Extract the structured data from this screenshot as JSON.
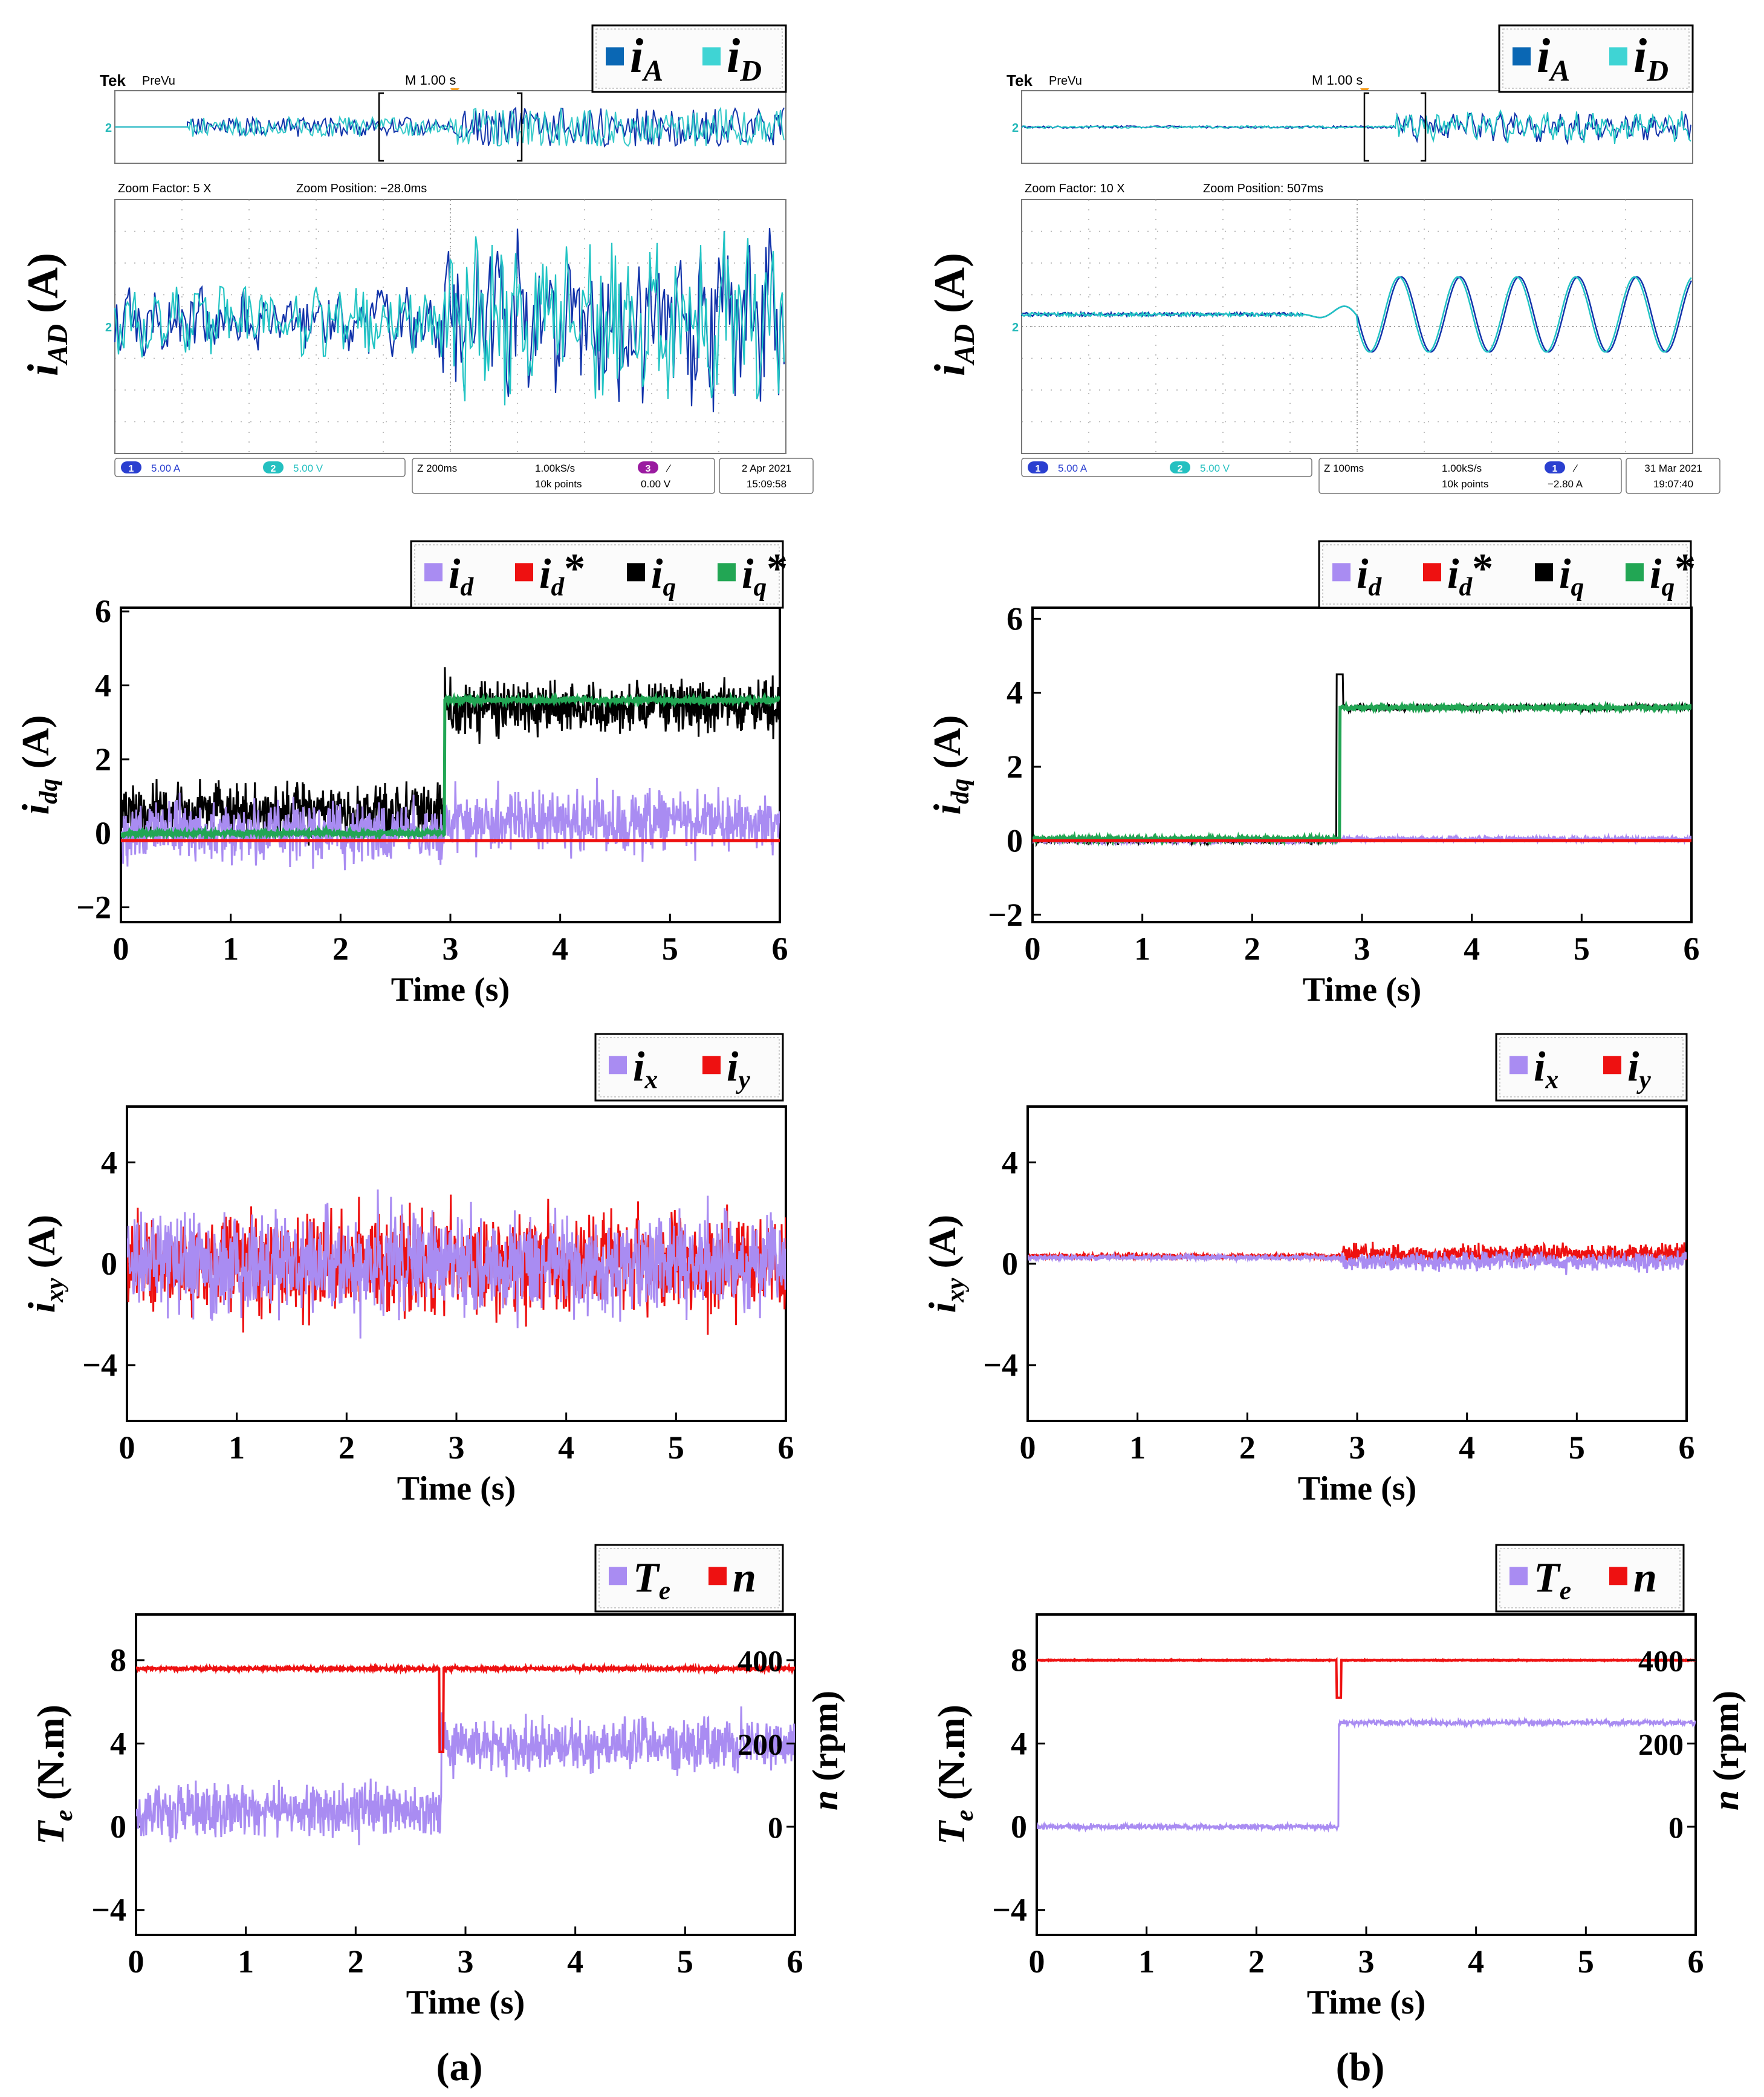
{
  "columns": [
    {
      "label": "(a)"
    },
    {
      "label": "(b)"
    }
  ],
  "colors": {
    "iA": "#0a67b4",
    "iD": "#3fd4d4",
    "ch1": "#1133aa",
    "ch2": "#22c4c4",
    "purple": "#a98cf2",
    "red": "#ee1111",
    "black": "#000000",
    "green": "#22a654"
  },
  "chart_data": [
    {
      "id": "scope-a",
      "type": "line",
      "ylabel_main": "i",
      "ylabel_sub": "AD",
      "ylabel_unit": " (A)",
      "legend": [
        {
          "main": "i",
          "sub": "A",
          "color_key": "iA"
        },
        {
          "main": "i",
          "sub": "D",
          "color_key": "iD"
        }
      ],
      "scope": {
        "brand": "Tek",
        "mode": "PreVu",
        "timebase": "M 1.00 s",
        "zoom_factor": "Zoom Factor: 5 X",
        "zoom_position": "Zoom Position: −28.0ms",
        "ch1_scale": "5.00 A",
        "ch2_scale": "5.00 V",
        "zoom_scale": "Z 200ms",
        "sample_rate": "1.00kS/s",
        "record": "10k points",
        "trig_ch": "3",
        "trig_symbol": "⁄",
        "trig_level": "0.00 V",
        "date": "2 Apr 2021",
        "time": "15:09:58",
        "marker": "2"
      },
      "series": [
        {
          "name": "iA",
          "pre_amplitude": 1.0,
          "post_amplitude": 2.0
        },
        {
          "name": "iD",
          "pre_amplitude": 0.9,
          "post_amplitude": 1.8
        }
      ]
    },
    {
      "id": "scope-b",
      "type": "line",
      "ylabel_main": "i",
      "ylabel_sub": "AD",
      "ylabel_unit": " (A)",
      "legend": [
        {
          "main": "i",
          "sub": "A",
          "color_key": "iA"
        },
        {
          "main": "i",
          "sub": "D",
          "color_key": "iD"
        }
      ],
      "scope": {
        "brand": "Tek",
        "mode": "PreVu",
        "timebase": "M 1.00 s",
        "zoom_factor": "Zoom Factor: 10 X",
        "zoom_position": "Zoom Position: 507ms",
        "ch1_scale": "5.00 A",
        "ch2_scale": "5.00 V",
        "zoom_scale": "Z 100ms",
        "sample_rate": "1.00kS/s",
        "record": "10k points",
        "trig_ch": "1",
        "trig_symbol": "⁄",
        "trig_level": "−2.80 A",
        "date": "31 Mar 2021",
        "time": "19:07:40",
        "marker": "2"
      },
      "series": [
        {
          "name": "iA",
          "pre_amplitude": 0.1,
          "post_amplitude": 2.2
        },
        {
          "name": "iD",
          "pre_amplitude": 0.1,
          "post_amplitude": 2.2
        }
      ]
    },
    {
      "id": "idq-a",
      "type": "line",
      "ylabel_main": "i",
      "ylabel_sub": "dq",
      "ylabel_unit": " (A)",
      "xlabel": "Time (s)",
      "xlim": [
        0,
        6
      ],
      "ylim": [
        -2.4,
        6.1
      ],
      "xticks": [
        "0",
        "1",
        "2",
        "3",
        "4",
        "5",
        "6"
      ],
      "yticks": [
        "−2",
        "0",
        "2",
        "4",
        "6"
      ],
      "ytick_values": [
        -2,
        0,
        2,
        4,
        6
      ],
      "legend": [
        {
          "main": "i",
          "sub": "d",
          "star": false,
          "color_key": "purple"
        },
        {
          "main": "i",
          "sub": "d",
          "star": true,
          "color_key": "red"
        },
        {
          "main": "i",
          "sub": "q",
          "star": false,
          "color_key": "black"
        },
        {
          "main": "i",
          "sub": "q",
          "star": true,
          "color_key": "green"
        }
      ],
      "step_time": 2.95,
      "series": [
        {
          "name": "id",
          "pre_mean": 0.0,
          "post_mean": 0.3,
          "noise": 0.75
        },
        {
          "name": "id*",
          "pre_mean": -0.2,
          "post_mean": -0.2,
          "noise": 0.0
        },
        {
          "name": "iq",
          "pre_mean": 0.6,
          "post_mean": 3.4,
          "noise": 0.7
        },
        {
          "name": "iq*",
          "pre_mean": 0.0,
          "post_mean": 3.6,
          "noise": 0.08
        }
      ]
    },
    {
      "id": "idq-b",
      "type": "line",
      "ylabel_main": "i",
      "ylabel_sub": "dq",
      "ylabel_unit": " (A)",
      "xlabel": "Time (s)",
      "xlim": [
        0,
        6
      ],
      "ylim": [
        -2.2,
        6.3
      ],
      "xticks": [
        "0",
        "1",
        "2",
        "3",
        "4",
        "5",
        "6"
      ],
      "yticks": [
        "−2",
        "0",
        "2",
        "4",
        "6"
      ],
      "ytick_values": [
        -2,
        0,
        2,
        4,
        6
      ],
      "legend": [
        {
          "main": "i",
          "sub": "d",
          "star": false,
          "color_key": "purple"
        },
        {
          "main": "i",
          "sub": "d",
          "star": true,
          "color_key": "red"
        },
        {
          "main": "i",
          "sub": "q",
          "star": false,
          "color_key": "black"
        },
        {
          "main": "i",
          "sub": "q",
          "star": true,
          "color_key": "green"
        }
      ],
      "step_time": 2.8,
      "series": [
        {
          "name": "id",
          "pre_mean": 0.0,
          "post_mean": 0.05,
          "noise": 0.07
        },
        {
          "name": "id*",
          "pre_mean": 0.0,
          "post_mean": 0.0,
          "noise": 0.0
        },
        {
          "name": "iq",
          "pre_mean": 0.0,
          "post_mean": 3.6,
          "noise": 0.08,
          "spike": 4.5
        },
        {
          "name": "iq*",
          "pre_mean": 0.05,
          "post_mean": 3.6,
          "noise": 0.05
        }
      ]
    },
    {
      "id": "ixy-a",
      "type": "line",
      "ylabel_main": "i",
      "ylabel_sub": "xy",
      "ylabel_unit": " (A)",
      "xlabel": "Time (s)",
      "xlim": [
        0,
        6
      ],
      "ylim": [
        -6.2,
        6.2
      ],
      "xticks": [
        "0",
        "1",
        "2",
        "3",
        "4",
        "5",
        "6"
      ],
      "yticks": [
        "−4",
        "0",
        "4"
      ],
      "ytick_values": [
        -4,
        0,
        4
      ],
      "legend": [
        {
          "main": "i",
          "sub": "x",
          "star": false,
          "color_key": "purple"
        },
        {
          "main": "i",
          "sub": "y",
          "star": false,
          "color_key": "red"
        }
      ],
      "series": [
        {
          "name": "iy",
          "mean": 0.0,
          "noise": 2.4
        },
        {
          "name": "ix",
          "mean": 0.0,
          "noise": 2.4
        }
      ]
    },
    {
      "id": "ixy-b",
      "type": "line",
      "ylabel_main": "i",
      "ylabel_sub": "xy",
      "ylabel_unit": " (A)",
      "xlabel": "Time (s)",
      "xlim": [
        0,
        6
      ],
      "ylim": [
        -6.2,
        6.2
      ],
      "xticks": [
        "0",
        "1",
        "2",
        "3",
        "4",
        "5",
        "6"
      ],
      "yticks": [
        "−4",
        "0",
        "4"
      ],
      "ytick_values": [
        -4,
        0,
        4
      ],
      "legend": [
        {
          "main": "i",
          "sub": "x",
          "star": false,
          "color_key": "purple"
        },
        {
          "main": "i",
          "sub": "y",
          "star": false,
          "color_key": "red"
        }
      ],
      "step_time": 2.85,
      "series": [
        {
          "name": "iy",
          "pre_mean": 0.3,
          "post_mean": 0.4,
          "pre_noise": 0.1,
          "post_noise": 0.35
        },
        {
          "name": "ix",
          "pre_mean": 0.25,
          "post_mean": 0.1,
          "pre_noise": 0.1,
          "post_noise": 0.35
        }
      ]
    },
    {
      "id": "ten-a",
      "type": "line",
      "ylabel_main": "T",
      "ylabel_sub": "e",
      "ylabel_unit": " (N.m)",
      "y2label_main": "n",
      "y2label_unit": " (rpm)",
      "xlabel": "Time (s)",
      "xlim": [
        0,
        6
      ],
      "ylim": [
        -5.2,
        10.2
      ],
      "xticks": [
        "0",
        "1",
        "2",
        "3",
        "4",
        "5",
        "6"
      ],
      "yticks": [
        "−4",
        "0",
        "4",
        "8"
      ],
      "ytick_values": [
        -4,
        0,
        4,
        8
      ],
      "y2ticks": [
        "0",
        "200",
        "400"
      ],
      "y2tick_values": [
        0,
        200,
        400
      ],
      "y2lim": [
        -260,
        510
      ],
      "legend": [
        {
          "main": "T",
          "sub": "e",
          "star": false,
          "color_key": "purple"
        },
        {
          "main": "n",
          "sub": "",
          "star": false,
          "color_key": "red"
        }
      ],
      "step_time": 2.78,
      "series": [
        {
          "name": "Te",
          "pre_mean": 0.8,
          "post_mean": 3.9,
          "noise": 1.2
        },
        {
          "name": "n",
          "mean": 380,
          "noise": 4,
          "dip": 180
        }
      ]
    },
    {
      "id": "ten-b",
      "type": "line",
      "ylabel_main": "T",
      "ylabel_sub": "e",
      "ylabel_unit": " (N.m)",
      "y2label_main": "n",
      "y2label_unit": " (rpm)",
      "xlabel": "Time (s)",
      "xlim": [
        0,
        6
      ],
      "ylim": [
        -5.2,
        10.2
      ],
      "xticks": [
        "0",
        "1",
        "2",
        "3",
        "4",
        "5",
        "6"
      ],
      "yticks": [
        "−4",
        "0",
        "4",
        "8"
      ],
      "ytick_values": [
        -4,
        0,
        4,
        8
      ],
      "y2ticks": [
        "0",
        "200",
        "400"
      ],
      "y2tick_values": [
        0,
        200,
        400
      ],
      "y2lim": [
        -260,
        510
      ],
      "legend": [
        {
          "main": "T",
          "sub": "e",
          "star": false,
          "color_key": "purple"
        },
        {
          "main": "n",
          "sub": "",
          "star": false,
          "color_key": "red"
        }
      ],
      "step_time": 2.75,
      "series": [
        {
          "name": "Te",
          "pre_mean": 0.0,
          "post_mean": 5.0,
          "noise": 0.12
        },
        {
          "name": "n",
          "mean": 400,
          "noise": 1,
          "dip": 310
        }
      ]
    }
  ]
}
